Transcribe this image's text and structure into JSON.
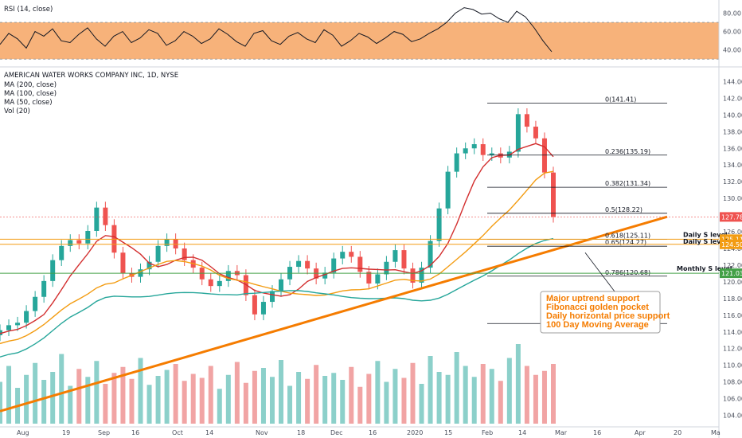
{
  "chart_data": {
    "type": "candlestick",
    "title": "AMERICAN WATER WORKS COMPANY INC, 1D, NYSE",
    "indicators": [
      "MA (200, close)",
      "MA (100, close)",
      "MA (50, close)",
      "Vol (20)"
    ],
    "rsi": {
      "label": "RSI (14, close)",
      "ticks": [
        "80.00",
        "60.00",
        "40.00"
      ],
      "band": [
        30,
        70
      ],
      "ylim": [
        25,
        90
      ],
      "values": [
        46,
        58,
        52,
        42,
        60,
        55,
        63,
        50,
        48,
        57,
        64,
        52,
        44,
        55,
        60,
        48,
        53,
        62,
        58,
        45,
        50,
        60,
        55,
        47,
        52,
        63,
        57,
        49,
        44,
        58,
        61,
        50,
        46,
        55,
        59,
        52,
        48,
        62,
        56,
        44,
        50,
        58,
        54,
        47,
        53,
        60,
        57,
        49,
        52,
        58,
        63,
        70,
        80,
        86,
        84,
        79,
        80,
        74,
        70,
        82,
        76,
        64,
        50,
        38
      ]
    },
    "price": {
      "ylim": [
        103,
        145
      ],
      "ticks": [
        "144.00",
        "142.00",
        "140.00",
        "138.00",
        "136.00",
        "134.00",
        "132.00",
        "130.00",
        "128.00",
        "126.00",
        "124.00",
        "122.00",
        "120.00",
        "118.00",
        "116.00",
        "114.00",
        "112.00",
        "110.00",
        "108.00",
        "106.00",
        "104.00"
      ],
      "series_close_approx": [
        114.2,
        114.8,
        115.1,
        116.5,
        118.2,
        120.1,
        122.6,
        124.3,
        125.0,
        124.6,
        126.1,
        128.9,
        126.8,
        123.5,
        121.0,
        120.6,
        121.5,
        122.4,
        124.3,
        125.1,
        124.0,
        122.6,
        121.7,
        120.3,
        119.5,
        120.1,
        121.3,
        120.8,
        118.4,
        116.1,
        117.6,
        118.9,
        120.3,
        121.8,
        122.5,
        121.6,
        120.4,
        121.1,
        122.8,
        123.6,
        123.0,
        121.2,
        119.8,
        120.9,
        122.4,
        123.8,
        121.6,
        119.9,
        121.7,
        124.9,
        128.8,
        133.2,
        135.4,
        136.0,
        136.5,
        135.2,
        135.4,
        134.9,
        135.6,
        140.1,
        138.6,
        137.2,
        133.1,
        127.8
      ]
    },
    "volume_approx": [
      42,
      58,
      36,
      49,
      61,
      44,
      52,
      70,
      38,
      55,
      47,
      63,
      40,
      51,
      57,
      45,
      66,
      39,
      48,
      54,
      60,
      43,
      50,
      46,
      58,
      35,
      49,
      62,
      41,
      53,
      56,
      47,
      64,
      38,
      52,
      45,
      59,
      48,
      51,
      44,
      57,
      37,
      50,
      63,
      42,
      55,
      46,
      61,
      40,
      68,
      52,
      49,
      72,
      58,
      47,
      60,
      55,
      43,
      66,
      80,
      58,
      49,
      53,
      60
    ],
    "x_labels": [
      "Aug",
      "19",
      "Sep",
      "16",
      "Oct",
      "14",
      "Nov",
      "18",
      "Dec",
      "16",
      "2020",
      "15",
      "Feb",
      "14",
      "Mar",
      "16",
      "Apr",
      "20",
      "Ma"
    ],
    "ma_lines": [
      {
        "name": "MA (50, close)",
        "color": "#d32f2f"
      },
      {
        "name": "MA (100, close)",
        "color": "#f39c12"
      },
      {
        "name": "MA (200, close)",
        "color": "#26a69a"
      }
    ],
    "fibonacci": [
      {
        "ratio": "0",
        "label": "0(141.41)",
        "price": 141.41
      },
      {
        "ratio": "0.236",
        "label": "0.236(135.19)",
        "price": 135.19
      },
      {
        "ratio": "0.382",
        "label": "0.382(131.34)",
        "price": 131.34
      },
      {
        "ratio": "0.5",
        "label": "0.5(128.22)",
        "price": 128.22
      },
      {
        "ratio": "0.618",
        "label": "0.618(125.11)",
        "price": 125.11
      },
      {
        "ratio": "0.65",
        "label": "0.65(124.27)",
        "price": 124.27
      },
      {
        "ratio": "0.786",
        "label": "0.786(120.68)",
        "price": 120.68
      },
      {
        "ratio": "1",
        "label": "",
        "price": 115.0
      }
    ],
    "levels": [
      {
        "label": "Daily S level",
        "tag": "125.11",
        "price": 125.11
      },
      {
        "label": "Daily S level",
        "tag": "124.50",
        "price": 124.5
      },
      {
        "label": "Monthly S level",
        "tag": "121.03",
        "price": 121.03
      }
    ],
    "last_price": {
      "tag": "127.78",
      "price": 127.78
    },
    "annotation": [
      "Major uptrend support",
      "Fibonacci golden pocket",
      "Daily horizontal price support",
      "100 Day Moving Average"
    ],
    "colors": {
      "up": "#26a69a",
      "down": "#ef5350",
      "rsi_band": "#f7b27a",
      "trend": "#f57c00",
      "vol_up": "#80cbc4",
      "vol_down": "#ef9a9a"
    }
  }
}
